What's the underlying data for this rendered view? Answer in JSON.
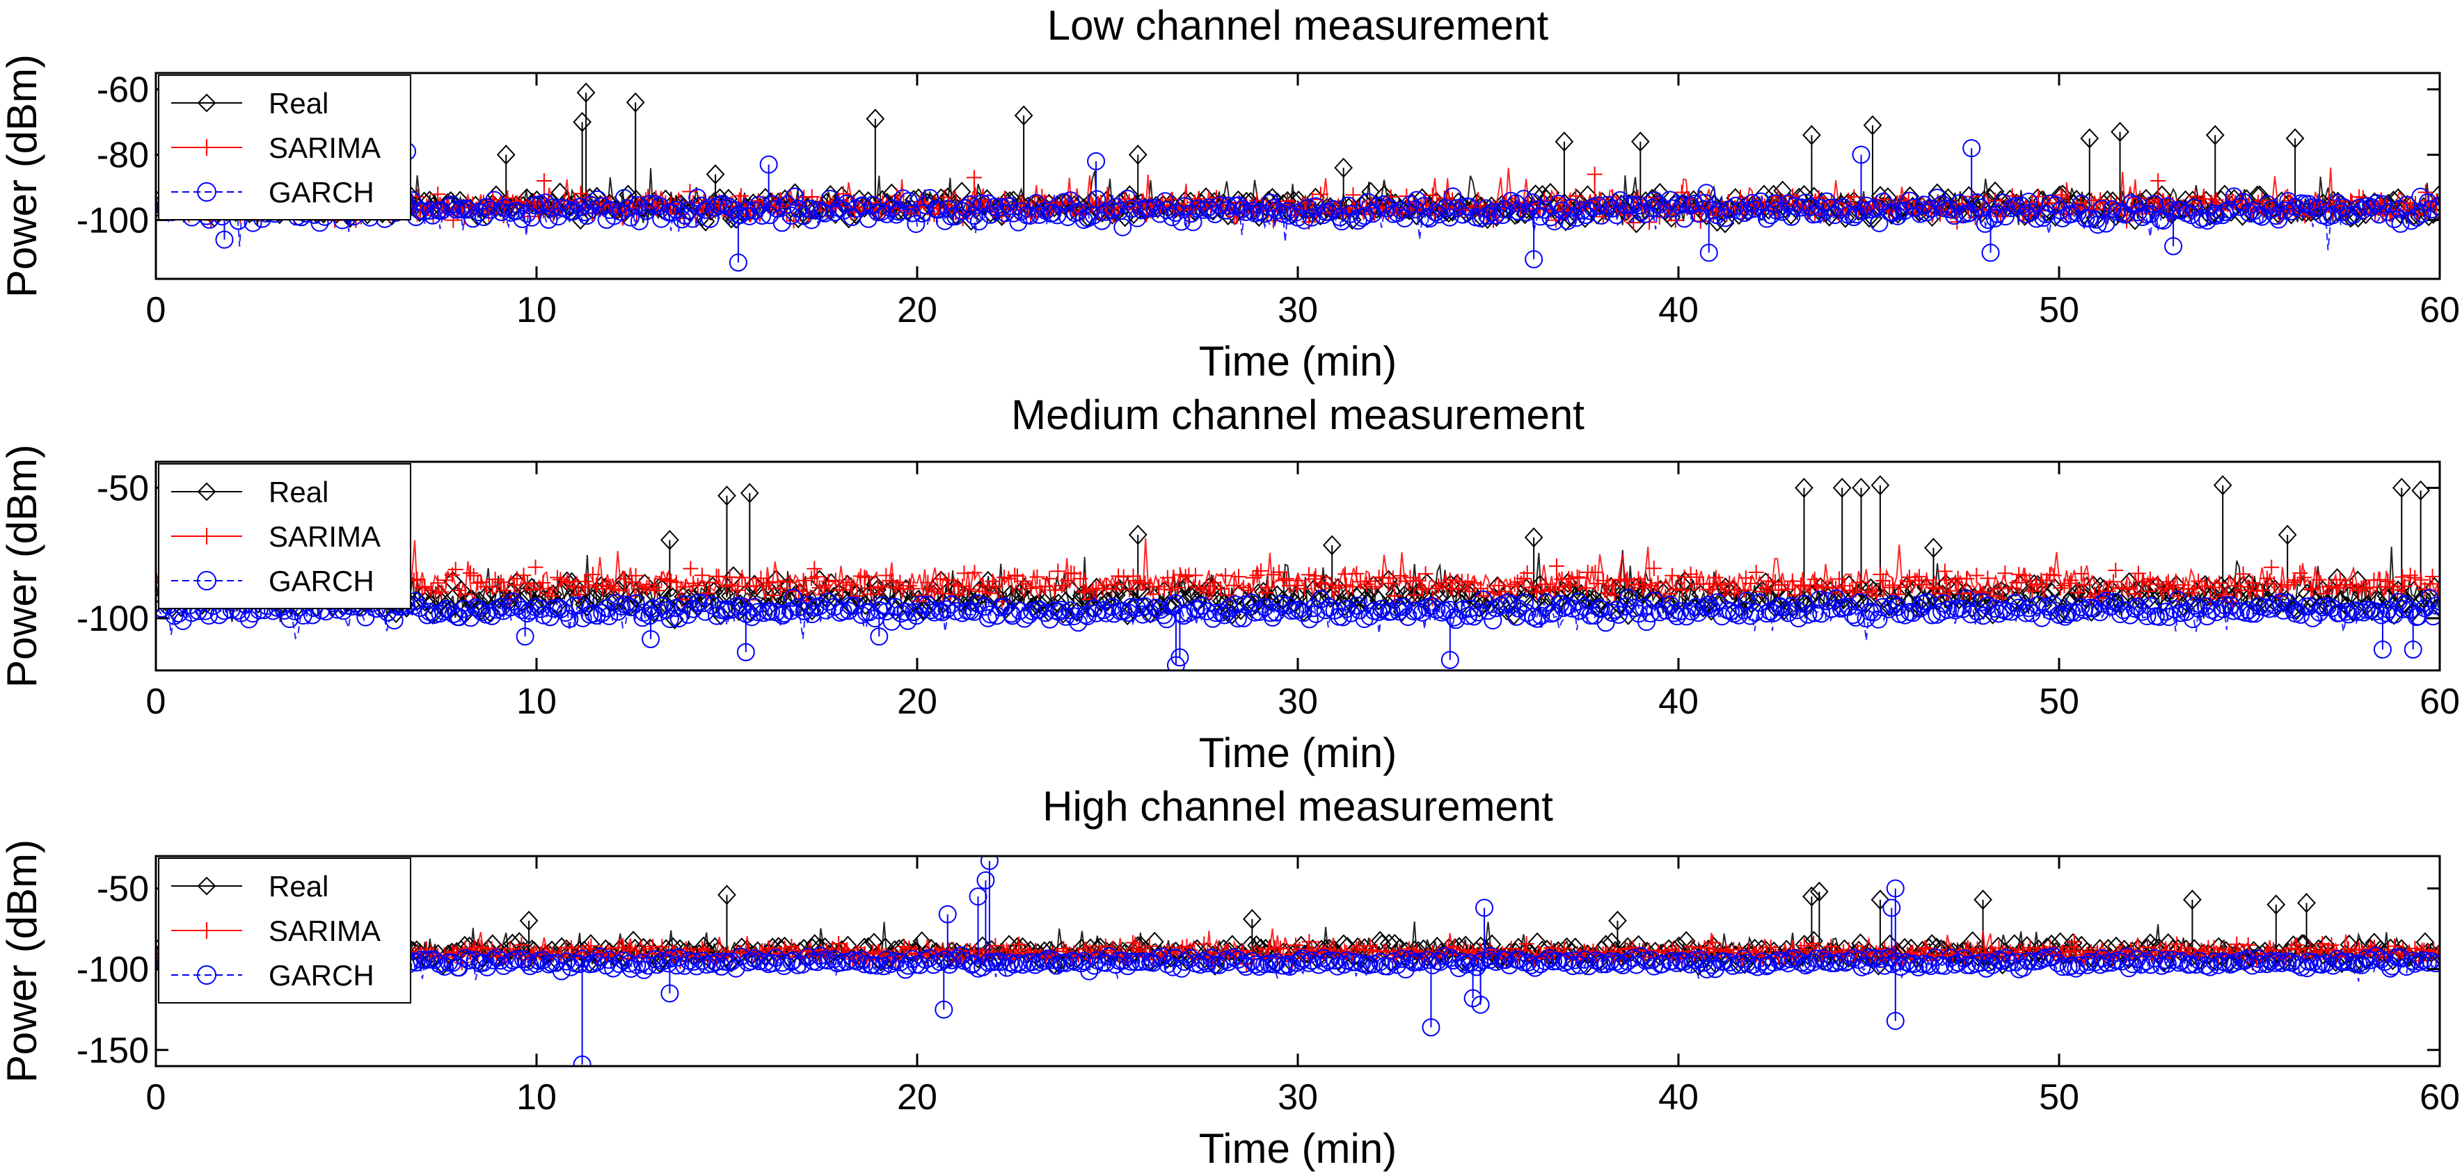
{
  "chart_data": [
    {
      "type": "line",
      "title": "Low channel measurement",
      "xlabel": "Time (min)",
      "ylabel": "Power (dBm)",
      "xlim": [
        0,
        60
      ],
      "ylim": [
        -118,
        -55
      ],
      "xticks": [
        0,
        10,
        20,
        30,
        40,
        50,
        60
      ],
      "yticks": [
        -60,
        -80,
        -100
      ],
      "legend_position": "top-left",
      "series": [
        {
          "name": "Real",
          "color": "#000000",
          "marker": "diamond",
          "baseline": -96,
          "noise": 3,
          "spikes": [
            [
              11.3,
              -61
            ],
            [
              11.2,
              -70
            ],
            [
              12.6,
              -64
            ],
            [
              18.9,
              -69
            ],
            [
              22.8,
              -68
            ],
            [
              25.8,
              -80
            ],
            [
              37.0,
              -76
            ],
            [
              43.5,
              -74
            ],
            [
              45.1,
              -71
            ],
            [
              50.8,
              -75
            ],
            [
              51.6,
              -73
            ],
            [
              54.1,
              -74
            ],
            [
              56.2,
              -75
            ],
            [
              9.2,
              -80
            ],
            [
              14.7,
              -86
            ],
            [
              31.2,
              -84
            ],
            [
              39.0,
              -76
            ]
          ]
        },
        {
          "name": "SARIMA",
          "color": "#ff0000",
          "marker": "plus",
          "baseline": -96,
          "noise": 3,
          "spikes": [
            [
              10.2,
              -88
            ],
            [
              21.5,
              -87
            ],
            [
              37.8,
              -86
            ],
            [
              52.6,
              -88
            ]
          ]
        },
        {
          "name": "GARCH",
          "color": "#0000ff",
          "marker": "circle",
          "baseline": -97,
          "noise": 3,
          "spikes": [
            [
              15.3,
              -113
            ],
            [
              36.2,
              -112
            ],
            [
              40.8,
              -110
            ],
            [
              48.2,
              -110
            ],
            [
              53.0,
              -108
            ],
            [
              1.8,
              -106
            ],
            [
              6.6,
              -79
            ],
            [
              16.1,
              -83
            ],
            [
              24.7,
              -82
            ],
            [
              44.8,
              -80
            ],
            [
              47.7,
              -78
            ]
          ]
        }
      ]
    },
    {
      "type": "line",
      "title": "Medium channel measurement",
      "xlabel": "Time (min)",
      "ylabel": "Power (dBm)",
      "xlim": [
        0,
        60
      ],
      "ylim": [
        -120,
        -40
      ],
      "xticks": [
        0,
        10,
        20,
        30,
        40,
        50,
        60
      ],
      "yticks": [
        -50,
        -100
      ],
      "legend_position": "top-left",
      "series": [
        {
          "name": "Real",
          "color": "#000000",
          "marker": "diamond",
          "baseline": -92,
          "noise": 5,
          "spikes": [
            [
              15.0,
              -53
            ],
            [
              15.6,
              -52
            ],
            [
              43.3,
              -50
            ],
            [
              44.3,
              -50
            ],
            [
              44.8,
              -50
            ],
            [
              45.3,
              -49
            ],
            [
              54.3,
              -49
            ],
            [
              59.0,
              -50
            ],
            [
              59.5,
              -51
            ],
            [
              13.5,
              -70
            ],
            [
              25.8,
              -68
            ],
            [
              30.9,
              -72
            ],
            [
              36.2,
              -69
            ],
            [
              46.7,
              -73
            ],
            [
              56.0,
              -68
            ]
          ]
        },
        {
          "name": "SARIMA",
          "color": "#ff0000",
          "marker": "plus",
          "baseline": -87,
          "noise": 4,
          "spikes": [
            [
              36.8,
              -80
            ],
            [
              17.3,
              -81
            ],
            [
              47.0,
              -82
            ]
          ]
        },
        {
          "name": "GARCH",
          "color": "#0000ff",
          "marker": "circle",
          "baseline": -97,
          "noise": 3,
          "spikes": [
            [
              26.9,
              -115
            ],
            [
              26.8,
              -118
            ],
            [
              34.0,
              -116
            ],
            [
              15.5,
              -113
            ],
            [
              58.5,
              -112
            ],
            [
              59.3,
              -112
            ],
            [
              9.7,
              -107
            ],
            [
              13.0,
              -108
            ],
            [
              19.0,
              -107
            ]
          ]
        }
      ]
    },
    {
      "type": "line",
      "title": "High channel measurement",
      "xlabel": "Time (min)",
      "ylabel": "Power (dBm)",
      "xlim": [
        0,
        60
      ],
      "ylim": [
        -160,
        -30
      ],
      "xticks": [
        0,
        10,
        20,
        30,
        40,
        50,
        60
      ],
      "yticks": [
        -50,
        -100,
        -150
      ],
      "legend_position": "top-left",
      "series": [
        {
          "name": "Real",
          "color": "#000000",
          "marker": "diamond",
          "baseline": -90,
          "noise": 5,
          "spikes": [
            [
              15.0,
              -54
            ],
            [
              43.5,
              -55
            ],
            [
              43.7,
              -52
            ],
            [
              45.3,
              -57
            ],
            [
              48.0,
              -57
            ],
            [
              53.5,
              -57
            ],
            [
              55.7,
              -60
            ],
            [
              56.5,
              -59
            ],
            [
              28.8,
              -69
            ],
            [
              38.4,
              -70
            ],
            [
              9.8,
              -70
            ]
          ]
        },
        {
          "name": "SARIMA",
          "color": "#ff0000",
          "marker": "plus",
          "baseline": -90,
          "noise": 4,
          "spikes": [
            [
              30.3,
              -83
            ],
            [
              50.4,
              -83
            ]
          ]
        },
        {
          "name": "GARCH",
          "color": "#0000ff",
          "marker": "circle",
          "baseline": -96,
          "noise": 3,
          "spikes": [
            [
              11.2,
              -159
            ],
            [
              21.9,
              -33
            ],
            [
              21.8,
              -45
            ],
            [
              21.6,
              -55
            ],
            [
              45.7,
              -50
            ],
            [
              45.6,
              -62
            ],
            [
              45.7,
              -132
            ],
            [
              33.5,
              -136
            ],
            [
              34.8,
              -122
            ],
            [
              34.6,
              -118
            ],
            [
              20.7,
              -125
            ],
            [
              20.8,
              -66
            ],
            [
              34.9,
              -62
            ],
            [
              13.5,
              -115
            ]
          ]
        }
      ]
    }
  ]
}
